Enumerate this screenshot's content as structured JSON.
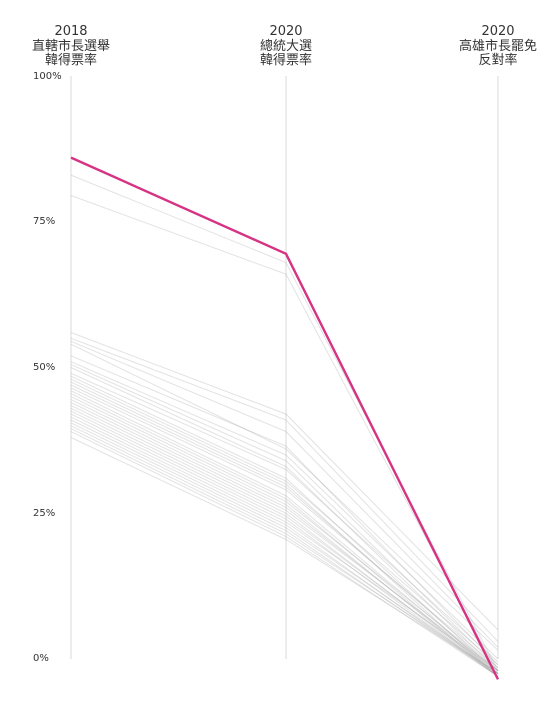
{
  "columns": [
    {
      "year": "2018",
      "line1": "直轄市長選舉",
      "line2": "韓得票率"
    },
    {
      "year": "2020",
      "line1": "總統大選",
      "line2": "韓得票率"
    },
    {
      "year": "2020",
      "line1": "高雄市長罷免",
      "line2": "反對率"
    }
  ],
  "chart_data": {
    "type": "line",
    "categories": [
      "2018 直轄市長選舉 韓得票率",
      "2020 總統大選 韓得票率",
      "2020 高雄市長罷免 反對率"
    ],
    "yticks": [
      "100%",
      "75%",
      "50%",
      "25%",
      "0%"
    ],
    "ylim": [
      0,
      100
    ],
    "highlight_color": "#d63384",
    "background_color": "#9e9e9e",
    "highlight": {
      "values": [
        86,
        69.5,
        -3.5
      ]
    },
    "series": [
      {
        "values": [
          83,
          68,
          -2
        ]
      },
      {
        "values": [
          79.5,
          66,
          -2.5
        ]
      },
      {
        "values": [
          56,
          42,
          5
        ]
      },
      {
        "values": [
          55,
          41,
          3
        ]
      },
      {
        "values": [
          54.5,
          39,
          2
        ]
      },
      {
        "values": [
          54,
          36,
          1.5
        ]
      },
      {
        "values": [
          52,
          36.5,
          -1
        ]
      },
      {
        "values": [
          51,
          35,
          0
        ]
      },
      {
        "values": [
          50.5,
          34,
          -1.5
        ]
      },
      {
        "values": [
          50,
          33,
          -2
        ]
      },
      {
        "values": [
          49,
          32.5,
          -0.5
        ]
      },
      {
        "values": [
          48.5,
          31,
          -2.5
        ]
      },
      {
        "values": [
          48,
          30.5,
          -1
        ]
      },
      {
        "values": [
          47.5,
          30,
          -3
        ]
      },
      {
        "values": [
          47,
          29.5,
          -2
        ]
      },
      {
        "values": [
          46.5,
          29,
          -1.5
        ]
      },
      {
        "values": [
          46,
          28,
          -2.5
        ]
      },
      {
        "values": [
          45.5,
          27.5,
          -3
        ]
      },
      {
        "values": [
          45,
          27,
          -2
        ]
      },
      {
        "values": [
          44.5,
          26.5,
          -3
        ]
      },
      {
        "values": [
          44,
          26,
          -2.5
        ]
      },
      {
        "values": [
          43.5,
          25.5,
          -2
        ]
      },
      {
        "values": [
          43,
          25,
          -3
        ]
      },
      {
        "values": [
          42.5,
          24.5,
          -2.5
        ]
      },
      {
        "values": [
          42,
          24,
          -3
        ]
      },
      {
        "values": [
          41.5,
          23.5,
          -2
        ]
      },
      {
        "values": [
          41,
          23,
          -3
        ]
      },
      {
        "values": [
          40.5,
          22.5,
          -2.5
        ]
      },
      {
        "values": [
          40,
          22,
          -3
        ]
      },
      {
        "values": [
          39.5,
          21.5,
          -2.5
        ]
      },
      {
        "values": [
          39,
          21,
          -3
        ]
      },
      {
        "values": [
          38,
          20.5,
          -2.5
        ]
      }
    ]
  }
}
